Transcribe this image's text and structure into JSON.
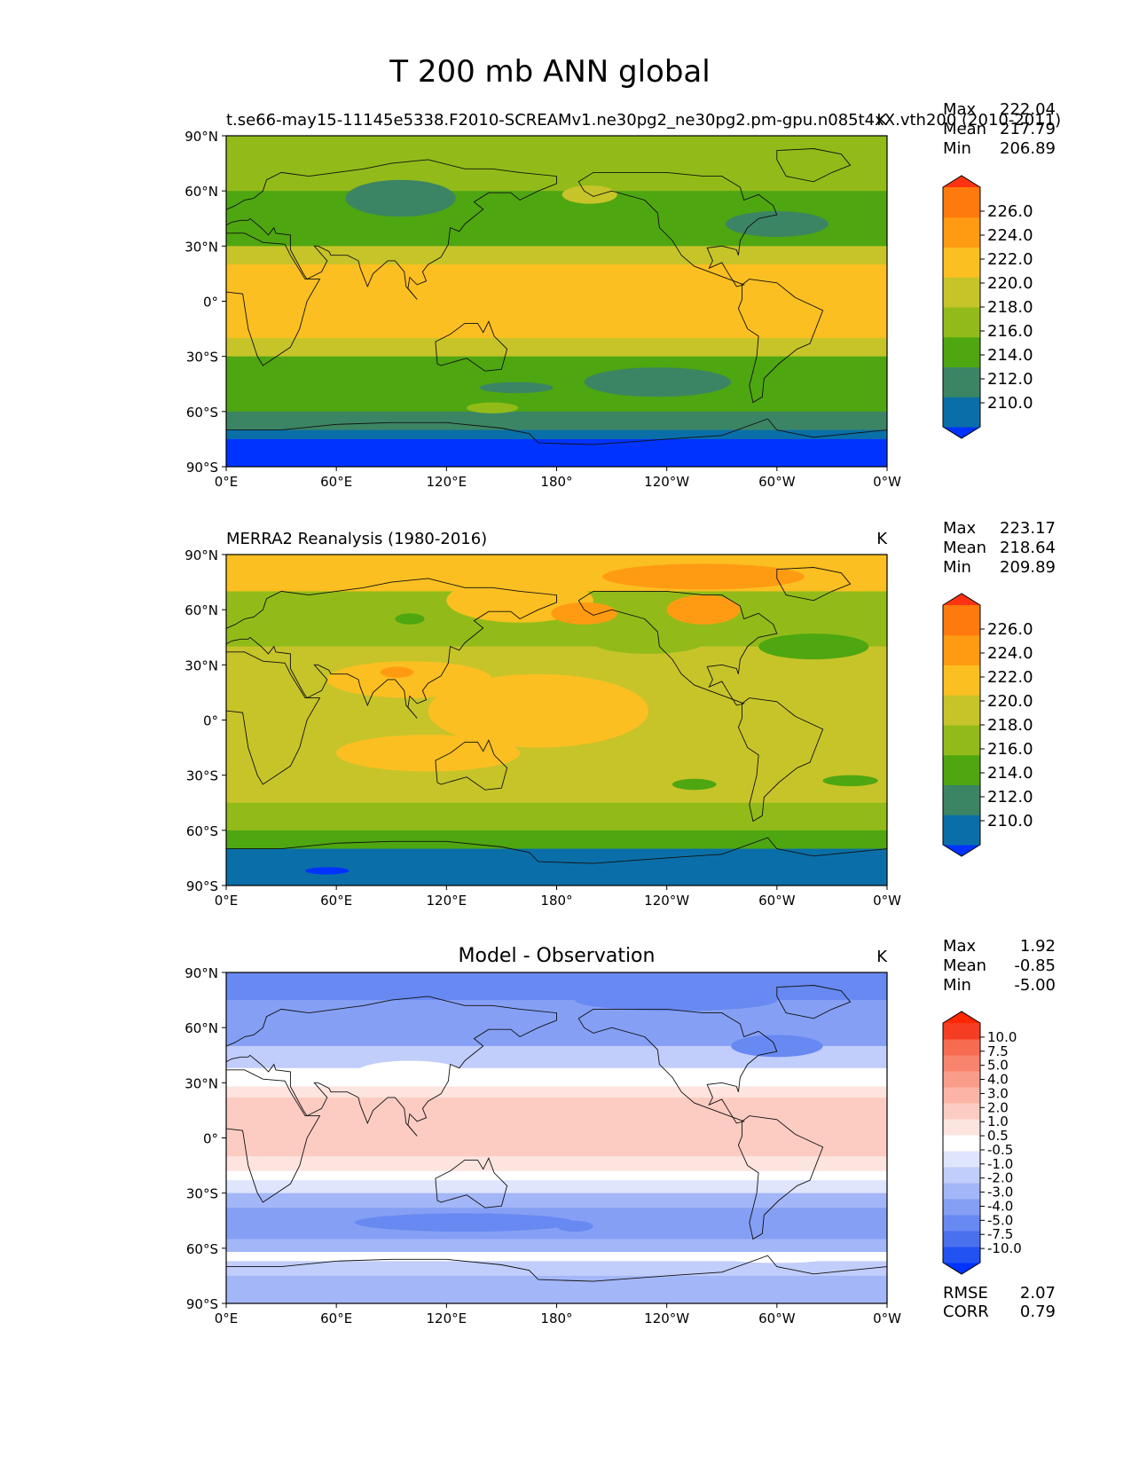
{
  "figure": {
    "title": "T 200 mb ANN global"
  },
  "axes": {
    "lat_ticks": [
      "90°N",
      "60°N",
      "30°N",
      "0°",
      "30°S",
      "60°S",
      "90°S"
    ],
    "lon_ticks": [
      "0°E",
      "60°E",
      "120°E",
      "180°",
      "120°W",
      "60°W",
      "0°W"
    ]
  },
  "chart_data": [
    {
      "type": "heatmap",
      "title": "",
      "left_label": "t.se66-may15-11145e5338.F2010-SCREAMv1.ne30pg2_ne30pg2.pm-gpu.n085t4xX.vth200 (2010-2011)",
      "units": "K",
      "stats": [
        {
          "label": "Max",
          "value": "222.04"
        },
        {
          "label": "Mean",
          "value": "217.79"
        },
        {
          "label": "Min",
          "value": "206.89"
        }
      ],
      "colorbar": {
        "levels": [
          208,
          210,
          212,
          214,
          216,
          218,
          220,
          222,
          224,
          226,
          228
        ],
        "tick_labels": [
          "226.0",
          "224.0",
          "222.0",
          "220.0",
          "218.0",
          "216.0",
          "214.0",
          "212.0",
          "210.0"
        ],
        "colors": [
          "#0033ff",
          "#0a6fa8",
          "#3b8564",
          "#4ea611",
          "#92bb19",
          "#c7c42a",
          "#fbbf21",
          "#ff9b12",
          "#ff7a0e",
          "#ff3312"
        ]
      },
      "bands": [
        {
          "lat_from": 90,
          "lat_to": 60,
          "color": "#92bb19"
        },
        {
          "lat_from": 60,
          "lat_to": 30,
          "color": "#4ea611"
        },
        {
          "lat_from": 30,
          "lat_to": 20,
          "color": "#c7c42a"
        },
        {
          "lat_from": 20,
          "lat_to": -20,
          "color": "#fbbf21"
        },
        {
          "lat_from": -20,
          "lat_to": -30,
          "color": "#c7c42a"
        },
        {
          "lat_from": -30,
          "lat_to": -60,
          "color": "#4ea611"
        },
        {
          "lat_from": -60,
          "lat_to": -70,
          "color": "#3b8564"
        },
        {
          "lat_from": -70,
          "lat_to": -75,
          "color": "#0a6fa8"
        },
        {
          "lat_from": -75,
          "lat_to": -90,
          "color": "#0033ff"
        }
      ],
      "blobs": [
        {
          "lon": 95,
          "lat": 56,
          "rx": 30,
          "ry": 10,
          "color": "#3b8564"
        },
        {
          "lon": 198,
          "lat": 58,
          "rx": 15,
          "ry": 5,
          "color": "#c7c42a"
        },
        {
          "lon": 300,
          "lat": 42,
          "rx": 28,
          "ry": 7,
          "color": "#3b8564"
        },
        {
          "lon": 235,
          "lat": -44,
          "rx": 40,
          "ry": 8,
          "color": "#3b8564"
        },
        {
          "lon": 158,
          "lat": -47,
          "rx": 20,
          "ry": 3,
          "color": "#3b8564"
        },
        {
          "lon": 145,
          "lat": -58,
          "rx": 14,
          "ry": 3,
          "color": "#92bb19"
        }
      ]
    },
    {
      "type": "heatmap",
      "title": "",
      "left_label": "MERRA2 Reanalysis (1980-2016)",
      "units": "K",
      "stats": [
        {
          "label": "Max",
          "value": "223.17"
        },
        {
          "label": "Mean",
          "value": "218.64"
        },
        {
          "label": "Min",
          "value": "209.89"
        }
      ],
      "colorbar": {
        "levels": [
          208,
          210,
          212,
          214,
          216,
          218,
          220,
          222,
          224,
          226,
          228
        ],
        "tick_labels": [
          "226.0",
          "224.0",
          "222.0",
          "220.0",
          "218.0",
          "216.0",
          "214.0",
          "212.0",
          "210.0"
        ],
        "colors": [
          "#0033ff",
          "#0a6fa8",
          "#3b8564",
          "#4ea611",
          "#92bb19",
          "#c7c42a",
          "#fbbf21",
          "#ff9b12",
          "#ff7a0e",
          "#ff3312"
        ]
      },
      "bands": [
        {
          "lat_from": 90,
          "lat_to": 70,
          "color": "#fbbf21"
        },
        {
          "lat_from": 70,
          "lat_to": 40,
          "color": "#92bb19"
        },
        {
          "lat_from": 40,
          "lat_to": -30,
          "color": "#c7c42a"
        },
        {
          "lat_from": -30,
          "lat_to": -45,
          "color": "#c7c42a"
        },
        {
          "lat_from": -45,
          "lat_to": -60,
          "color": "#92bb19"
        },
        {
          "lat_from": -60,
          "lat_to": -70,
          "color": "#4ea611"
        },
        {
          "lat_from": -70,
          "lat_to": -90,
          "color": "#0a6fa8"
        }
      ],
      "blobs": [
        {
          "lon": 260,
          "lat": 78,
          "rx": 55,
          "ry": 7,
          "color": "#ff9b12"
        },
        {
          "lon": 160,
          "lat": 65,
          "rx": 40,
          "ry": 12,
          "color": "#fbbf21"
        },
        {
          "lon": 195,
          "lat": 58,
          "rx": 18,
          "ry": 6,
          "color": "#ff9b12"
        },
        {
          "lon": 260,
          "lat": 60,
          "rx": 20,
          "ry": 8,
          "color": "#ff9b12"
        },
        {
          "lon": 100,
          "lat": 22,
          "rx": 45,
          "ry": 10,
          "color": "#fbbf21"
        },
        {
          "lon": 170,
          "lat": 5,
          "rx": 60,
          "ry": 20,
          "color": "#fbbf21"
        },
        {
          "lon": 110,
          "lat": -18,
          "rx": 50,
          "ry": 10,
          "color": "#fbbf21"
        },
        {
          "lon": 93,
          "lat": 26,
          "rx": 9,
          "ry": 3,
          "color": "#ff9b12"
        },
        {
          "lon": 100,
          "lat": 55,
          "rx": 8,
          "ry": 3,
          "color": "#4ea611"
        },
        {
          "lon": 320,
          "lat": 40,
          "rx": 30,
          "ry": 7,
          "color": "#4ea611"
        },
        {
          "lon": 230,
          "lat": 42,
          "rx": 30,
          "ry": 6,
          "color": "#92bb19"
        },
        {
          "lon": 255,
          "lat": -35,
          "rx": 12,
          "ry": 3,
          "color": "#4ea611"
        },
        {
          "lon": 340,
          "lat": -33,
          "rx": 15,
          "ry": 3,
          "color": "#4ea611"
        },
        {
          "lon": 55,
          "lat": -82,
          "rx": 12,
          "ry": 2,
          "color": "#0033ff"
        }
      ]
    },
    {
      "type": "heatmap",
      "title": "Model - Observation",
      "left_label": "",
      "units": "K",
      "stats": [
        {
          "label": "Max",
          "value": "1.92"
        },
        {
          "label": "Mean",
          "value": "-0.85"
        },
        {
          "label": "Min",
          "value": "-5.00"
        }
      ],
      "footer_stats": [
        {
          "label": "RMSE",
          "value": "2.07"
        },
        {
          "label": "CORR",
          "value": "0.79"
        }
      ],
      "colorbar": {
        "levels": [
          -12,
          -10,
          -7.5,
          -5,
          -4,
          -3,
          -2,
          -1,
          -0.5,
          0.5,
          1,
          2,
          3,
          4,
          5,
          7.5,
          10,
          12
        ],
        "tick_labels": [
          "10.0",
          "7.5",
          "5.0",
          "4.0",
          "3.0",
          "2.0",
          "1.0",
          "0.5",
          "-0.5",
          "-1.0",
          "-2.0",
          "-3.0",
          "-4.0",
          "-5.0",
          "-7.5",
          "-10.0"
        ],
        "colors": [
          "#0033ff",
          "#2253f2",
          "#4a70ee",
          "#6889f2",
          "#859ff4",
          "#a3b6f7",
          "#c1cdfa",
          "#dfe5fc",
          "#ffffff",
          "#fde4df",
          "#fcccc3",
          "#fbb4a6",
          "#fa9c8a",
          "#f9846d",
          "#f76b51",
          "#f43d22",
          "#ff2600"
        ]
      },
      "bands": [
        {
          "lat_from": 90,
          "lat_to": 75,
          "color": "#6889f2"
        },
        {
          "lat_from": 75,
          "lat_to": 50,
          "color": "#859ff4"
        },
        {
          "lat_from": 50,
          "lat_to": 38,
          "color": "#c1cdfa"
        },
        {
          "lat_from": 38,
          "lat_to": 28,
          "color": "#ffffff"
        },
        {
          "lat_from": 28,
          "lat_to": 22,
          "color": "#fde4df"
        },
        {
          "lat_from": 22,
          "lat_to": -10,
          "color": "#fcccc3"
        },
        {
          "lat_from": -10,
          "lat_to": -18,
          "color": "#fde4df"
        },
        {
          "lat_from": -18,
          "lat_to": -23,
          "color": "#ffffff"
        },
        {
          "lat_from": -23,
          "lat_to": -30,
          "color": "#dfe5fc"
        },
        {
          "lat_from": -30,
          "lat_to": -38,
          "color": "#a3b6f7"
        },
        {
          "lat_from": -38,
          "lat_to": -55,
          "color": "#859ff4"
        },
        {
          "lat_from": -55,
          "lat_to": -62,
          "color": "#a3b6f7"
        },
        {
          "lat_from": -62,
          "lat_to": -67,
          "color": "#ffffff"
        },
        {
          "lat_from": -67,
          "lat_to": -75,
          "color": "#c1cdfa"
        },
        {
          "lat_from": -75,
          "lat_to": -90,
          "color": "#a3b6f7"
        }
      ],
      "blobs": [
        {
          "lon": 245,
          "lat": 75,
          "rx": 55,
          "ry": 6,
          "color": "#6889f2"
        },
        {
          "lon": 100,
          "lat": 35,
          "rx": 30,
          "ry": 7,
          "color": "#ffffff"
        },
        {
          "lon": 300,
          "lat": 50,
          "rx": 25,
          "ry": 6,
          "color": "#6889f2"
        },
        {
          "lon": 190,
          "lat": -48,
          "rx": 10,
          "ry": 3,
          "color": "#6889f2"
        },
        {
          "lon": 130,
          "lat": -46,
          "rx": 60,
          "ry": 5,
          "color": "#6889f2"
        },
        {
          "lon": 300,
          "lat": -65,
          "rx": 30,
          "ry": 3,
          "color": "#ffffff"
        }
      ]
    }
  ]
}
